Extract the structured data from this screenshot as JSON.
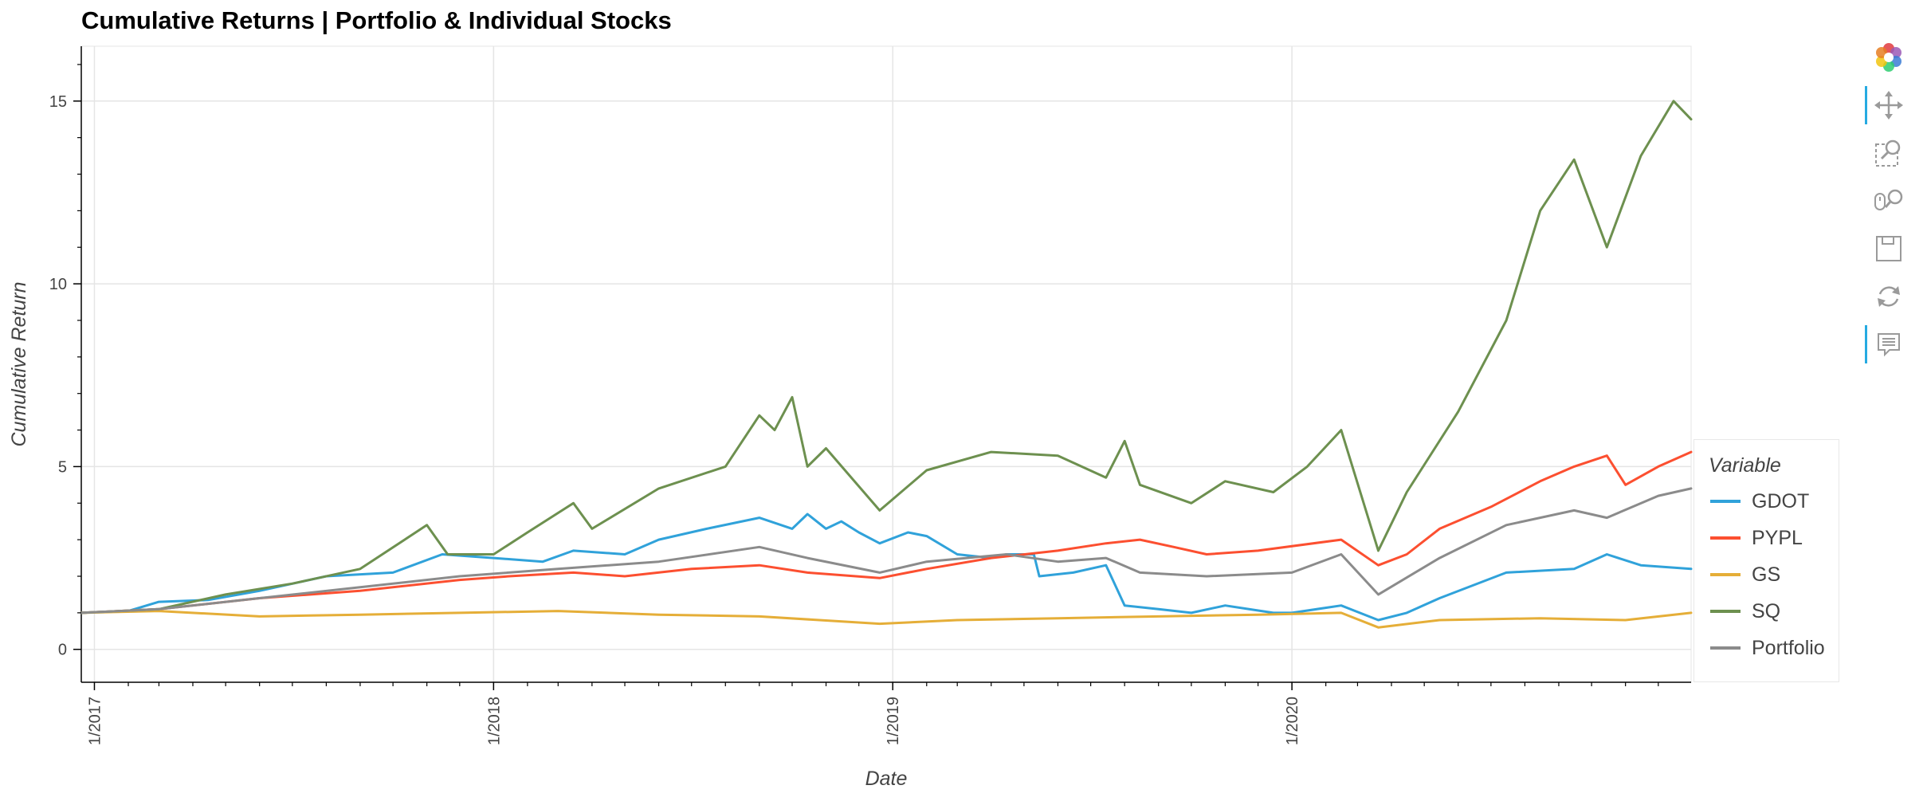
{
  "chart_data": {
    "type": "line",
    "title": "Cumulative Returns | Portfolio & Individual Stocks",
    "xlabel": "Date",
    "ylabel": "Cumulative Return",
    "x_range": [
      "2016-12-20",
      "2020-12-31"
    ],
    "ylim": [
      -0.9,
      16.5
    ],
    "y_ticks": [
      0,
      5,
      10,
      15
    ],
    "x_ticks": [
      {
        "date": "2017-01-01",
        "label": "1/2017"
      },
      {
        "date": "2018-01-01",
        "label": "1/2018"
      },
      {
        "date": "2019-01-01",
        "label": "1/2019"
      },
      {
        "date": "2020-01-01",
        "label": "1/2020"
      }
    ],
    "grid": true,
    "legend_title": "Variable",
    "legend_position": "right",
    "series": [
      {
        "name": "GDOT",
        "color": "#30a2da",
        "points": [
          [
            "2016-12-20",
            1.0
          ],
          [
            "2017-02-01",
            1.05
          ],
          [
            "2017-03-01",
            1.3
          ],
          [
            "2017-04-15",
            1.35
          ],
          [
            "2017-06-01",
            1.6
          ],
          [
            "2017-08-01",
            2.0
          ],
          [
            "2017-10-01",
            2.1
          ],
          [
            "2017-11-15",
            2.6
          ],
          [
            "2018-01-01",
            2.5
          ],
          [
            "2018-02-15",
            2.4
          ],
          [
            "2018-03-15",
            2.7
          ],
          [
            "2018-05-01",
            2.6
          ],
          [
            "2018-06-01",
            3.0
          ],
          [
            "2018-07-15",
            3.3
          ],
          [
            "2018-09-01",
            3.6
          ],
          [
            "2018-10-01",
            3.3
          ],
          [
            "2018-10-15",
            3.7
          ],
          [
            "2018-11-01",
            3.3
          ],
          [
            "2018-11-15",
            3.5
          ],
          [
            "2018-12-01",
            3.2
          ],
          [
            "2018-12-20",
            2.9
          ],
          [
            "2019-01-15",
            3.2
          ],
          [
            "2019-02-01",
            3.1
          ],
          [
            "2019-03-01",
            2.6
          ],
          [
            "2019-04-01",
            2.5
          ],
          [
            "2019-04-15",
            2.6
          ],
          [
            "2019-05-10",
            2.6
          ],
          [
            "2019-05-15",
            2.0
          ],
          [
            "2019-06-15",
            2.1
          ],
          [
            "2019-07-15",
            2.3
          ],
          [
            "2019-08-01",
            1.2
          ],
          [
            "2019-09-01",
            1.1
          ],
          [
            "2019-10-01",
            1.0
          ],
          [
            "2019-11-01",
            1.2
          ],
          [
            "2019-12-15",
            1.0
          ],
          [
            "2020-01-01",
            1.0
          ],
          [
            "2020-02-15",
            1.2
          ],
          [
            "2020-03-20",
            0.8
          ],
          [
            "2020-04-15",
            1.0
          ],
          [
            "2020-05-15",
            1.4
          ],
          [
            "2020-07-15",
            2.1
          ],
          [
            "2020-09-15",
            2.2
          ],
          [
            "2020-10-15",
            2.6
          ],
          [
            "2020-11-15",
            2.3
          ],
          [
            "2020-12-31",
            2.2
          ]
        ]
      },
      {
        "name": "PYPL",
        "color": "#fc4f30",
        "points": [
          [
            "2016-12-20",
            1.0
          ],
          [
            "2017-03-01",
            1.1
          ],
          [
            "2017-06-01",
            1.4
          ],
          [
            "2017-09-01",
            1.6
          ],
          [
            "2017-12-01",
            1.9
          ],
          [
            "2018-01-15",
            2.0
          ],
          [
            "2018-03-15",
            2.1
          ],
          [
            "2018-05-01",
            2.0
          ],
          [
            "2018-07-01",
            2.2
          ],
          [
            "2018-09-01",
            2.3
          ],
          [
            "2018-10-15",
            2.1
          ],
          [
            "2018-12-20",
            1.95
          ],
          [
            "2019-02-01",
            2.2
          ],
          [
            "2019-04-01",
            2.5
          ],
          [
            "2019-06-01",
            2.7
          ],
          [
            "2019-07-15",
            2.9
          ],
          [
            "2019-08-15",
            3.0
          ],
          [
            "2019-09-15",
            2.8
          ],
          [
            "2019-10-15",
            2.6
          ],
          [
            "2019-12-01",
            2.7
          ],
          [
            "2020-02-15",
            3.0
          ],
          [
            "2020-03-20",
            2.3
          ],
          [
            "2020-04-15",
            2.6
          ],
          [
            "2020-05-15",
            3.3
          ],
          [
            "2020-07-01",
            3.9
          ],
          [
            "2020-08-15",
            4.6
          ],
          [
            "2020-09-15",
            5.0
          ],
          [
            "2020-10-15",
            5.3
          ],
          [
            "2020-11-01",
            4.5
          ],
          [
            "2020-12-01",
            5.0
          ],
          [
            "2020-12-31",
            5.4
          ]
        ]
      },
      {
        "name": "GS",
        "color": "#e5ae38",
        "points": [
          [
            "2016-12-20",
            1.0
          ],
          [
            "2017-03-01",
            1.05
          ],
          [
            "2017-06-01",
            0.9
          ],
          [
            "2017-09-01",
            0.95
          ],
          [
            "2017-12-01",
            1.0
          ],
          [
            "2018-03-01",
            1.05
          ],
          [
            "2018-06-01",
            0.95
          ],
          [
            "2018-09-01",
            0.9
          ],
          [
            "2018-12-20",
            0.7
          ],
          [
            "2019-03-01",
            0.8
          ],
          [
            "2019-06-01",
            0.85
          ],
          [
            "2019-09-01",
            0.9
          ],
          [
            "2019-12-01",
            0.95
          ],
          [
            "2020-02-15",
            1.0
          ],
          [
            "2020-03-20",
            0.6
          ],
          [
            "2020-05-15",
            0.8
          ],
          [
            "2020-08-15",
            0.85
          ],
          [
            "2020-11-01",
            0.8
          ],
          [
            "2020-12-31",
            1.0
          ]
        ]
      },
      {
        "name": "SQ",
        "color": "#6d904f",
        "points": [
          [
            "2016-12-20",
            1.0
          ],
          [
            "2017-03-01",
            1.1
          ],
          [
            "2017-05-01",
            1.5
          ],
          [
            "2017-07-01",
            1.8
          ],
          [
            "2017-09-01",
            2.2
          ],
          [
            "2017-11-01",
            3.4
          ],
          [
            "2017-11-20",
            2.6
          ],
          [
            "2018-01-01",
            2.6
          ],
          [
            "2018-02-01",
            3.2
          ],
          [
            "2018-03-15",
            4.0
          ],
          [
            "2018-04-01",
            3.3
          ],
          [
            "2018-06-01",
            4.4
          ],
          [
            "2018-08-01",
            5.0
          ],
          [
            "2018-09-01",
            6.4
          ],
          [
            "2018-09-15",
            6.0
          ],
          [
            "2018-10-01",
            6.9
          ],
          [
            "2018-10-15",
            5.0
          ],
          [
            "2018-11-01",
            5.5
          ],
          [
            "2018-12-20",
            3.8
          ],
          [
            "2019-02-01",
            4.9
          ],
          [
            "2019-04-01",
            5.4
          ],
          [
            "2019-06-01",
            5.3
          ],
          [
            "2019-07-15",
            4.7
          ],
          [
            "2019-08-01",
            5.7
          ],
          [
            "2019-08-15",
            4.5
          ],
          [
            "2019-10-01",
            4.0
          ],
          [
            "2019-11-01",
            4.6
          ],
          [
            "2019-12-15",
            4.3
          ],
          [
            "2020-01-15",
            5.0
          ],
          [
            "2020-02-15",
            6.0
          ],
          [
            "2020-03-20",
            2.7
          ],
          [
            "2020-04-15",
            4.3
          ],
          [
            "2020-06-01",
            6.5
          ],
          [
            "2020-07-15",
            9.0
          ],
          [
            "2020-08-15",
            12.0
          ],
          [
            "2020-09-15",
            13.4
          ],
          [
            "2020-10-15",
            11.0
          ],
          [
            "2020-11-15",
            13.5
          ],
          [
            "2020-12-15",
            15.0
          ],
          [
            "2020-12-31",
            14.5
          ]
        ]
      },
      {
        "name": "Portfolio",
        "color": "#8b8b8b",
        "points": [
          [
            "2016-12-20",
            1.0
          ],
          [
            "2017-03-01",
            1.1
          ],
          [
            "2017-06-01",
            1.4
          ],
          [
            "2017-09-01",
            1.7
          ],
          [
            "2017-12-01",
            2.0
          ],
          [
            "2018-03-01",
            2.2
          ],
          [
            "2018-06-01",
            2.4
          ],
          [
            "2018-09-01",
            2.8
          ],
          [
            "2018-10-15",
            2.5
          ],
          [
            "2018-12-20",
            2.1
          ],
          [
            "2019-02-01",
            2.4
          ],
          [
            "2019-04-15",
            2.6
          ],
          [
            "2019-06-01",
            2.4
          ],
          [
            "2019-07-15",
            2.5
          ],
          [
            "2019-08-15",
            2.1
          ],
          [
            "2019-10-15",
            2.0
          ],
          [
            "2020-01-01",
            2.1
          ],
          [
            "2020-02-15",
            2.6
          ],
          [
            "2020-03-20",
            1.5
          ],
          [
            "2020-05-15",
            2.5
          ],
          [
            "2020-07-15",
            3.4
          ],
          [
            "2020-09-15",
            3.8
          ],
          [
            "2020-10-15",
            3.6
          ],
          [
            "2020-12-01",
            4.2
          ],
          [
            "2020-12-31",
            4.4
          ]
        ]
      }
    ]
  },
  "legend": {
    "title": "Variable",
    "items": [
      {
        "label": "GDOT",
        "color": "#30a2da"
      },
      {
        "label": "PYPL",
        "color": "#fc4f30"
      },
      {
        "label": "GS",
        "color": "#e5ae38"
      },
      {
        "label": "SQ",
        "color": "#6d904f"
      },
      {
        "label": "Portfolio",
        "color": "#8b8b8b"
      }
    ]
  },
  "toolbar": {
    "tools": [
      {
        "icon": "bokeh-logo-icon",
        "active": false
      },
      {
        "icon": "pan-icon",
        "active": true
      },
      {
        "icon": "box-zoom-icon",
        "active": false
      },
      {
        "icon": "wheel-zoom-icon",
        "active": false
      },
      {
        "icon": "save-icon",
        "active": false
      },
      {
        "icon": "reset-icon",
        "active": false
      },
      {
        "icon": "hover-icon",
        "active": true
      }
    ]
  }
}
